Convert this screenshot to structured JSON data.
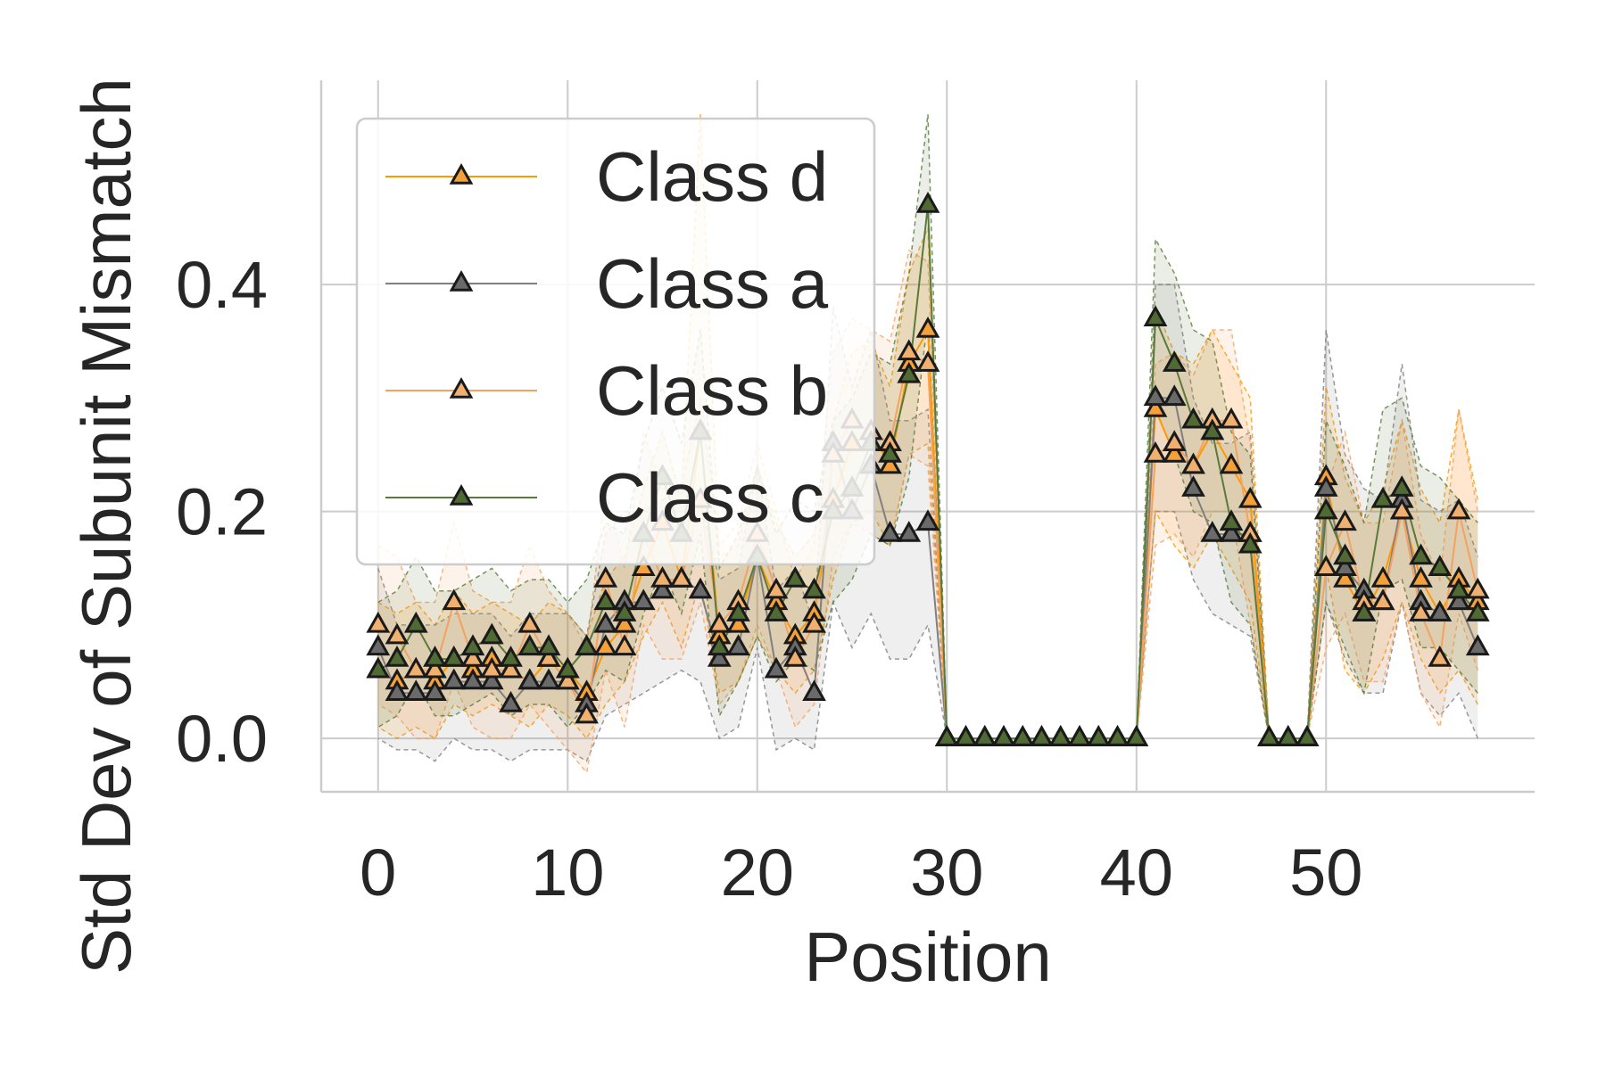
{
  "chart_data": {
    "type": "line",
    "title": "",
    "xlabel": "Position",
    "ylabel": "Std Dev of Subunit Mismatch",
    "xlim": [
      -3,
      61
    ],
    "ylim": [
      -0.047,
      0.58
    ],
    "xticks": [
      0,
      10,
      20,
      30,
      40,
      50
    ],
    "yticks": [
      0.0,
      0.2,
      0.4
    ],
    "xtick_labels": [
      "0",
      "10",
      "20",
      "30",
      "40",
      "50"
    ],
    "ytick_labels": [
      "0.0",
      "0.2",
      "0.4"
    ],
    "grid": true,
    "legend_position": "top-left",
    "marker": "triangle",
    "series": [
      {
        "name": "Class d",
        "color": "#ff9900",
        "marker_color": "#f6a03a",
        "x": [
          0,
          1,
          2,
          3,
          4,
          5,
          6,
          7,
          8,
          9,
          10,
          11,
          12,
          13,
          14,
          15,
          16,
          17,
          18,
          19,
          20,
          21,
          22,
          23,
          24,
          25,
          26,
          27,
          28,
          29,
          30,
          31,
          32,
          33,
          34,
          35,
          36,
          37,
          38,
          39,
          40,
          41,
          42,
          43,
          44,
          45,
          46,
          47,
          48,
          49,
          50,
          51,
          52,
          53,
          54,
          55,
          56,
          57,
          58
        ],
        "y": [
          0.06,
          0.05,
          0.06,
          0.05,
          0.07,
          0.06,
          0.07,
          0.06,
          0.05,
          0.07,
          0.06,
          0.04,
          0.08,
          0.1,
          0.15,
          0.19,
          0.14,
          0.27,
          0.09,
          0.1,
          0.16,
          0.12,
          0.09,
          0.11,
          0.21,
          0.26,
          0.27,
          0.24,
          0.33,
          0.36,
          0,
          0,
          0,
          0,
          0,
          0,
          0,
          0,
          0,
          0,
          0,
          0.29,
          0.25,
          0.24,
          0.27,
          0.24,
          0.21,
          0,
          0,
          0,
          0.23,
          0.14,
          0.11,
          0.14,
          0.2,
          0.14,
          0.11,
          0.14,
          0.12
        ],
        "band_lower": [
          0.01,
          0.0,
          0.01,
          0.0,
          0.03,
          0.02,
          0.03,
          0.02,
          0.01,
          0.03,
          0.02,
          0.0,
          0.03,
          0.05,
          0.09,
          0.12,
          0.08,
          0.14,
          0.04,
          0.05,
          0.09,
          0.06,
          0.04,
          0.06,
          0.14,
          0.19,
          0.2,
          0.17,
          0.25,
          0.26,
          0,
          0,
          0,
          0,
          0,
          0,
          0,
          0,
          0,
          0,
          0,
          0.2,
          0.17,
          0.15,
          0.18,
          0.15,
          0.12,
          0,
          0,
          0,
          0.15,
          0.06,
          0.04,
          0.07,
          0.12,
          0.07,
          0.04,
          0.06,
          0.03
        ],
        "band_upper": [
          0.12,
          0.11,
          0.12,
          0.1,
          0.13,
          0.11,
          0.12,
          0.11,
          0.1,
          0.12,
          0.11,
          0.09,
          0.14,
          0.16,
          0.22,
          0.27,
          0.21,
          0.55,
          0.16,
          0.17,
          0.24,
          0.19,
          0.16,
          0.18,
          0.28,
          0.34,
          0.35,
          0.31,
          0.41,
          0.45,
          0,
          0,
          0,
          0,
          0,
          0,
          0,
          0,
          0,
          0,
          0,
          0.38,
          0.34,
          0.33,
          0.36,
          0.33,
          0.3,
          0,
          0,
          0,
          0.31,
          0.23,
          0.19,
          0.22,
          0.28,
          0.22,
          0.19,
          0.29,
          0.21
        ]
      },
      {
        "name": "Class a",
        "color": "#808080",
        "marker_color": "#6a6a6a",
        "x": [
          0,
          1,
          2,
          3,
          4,
          5,
          6,
          7,
          8,
          9,
          10,
          11,
          12,
          13,
          14,
          15,
          16,
          17,
          18,
          19,
          20,
          21,
          22,
          23,
          24,
          25,
          26,
          27,
          28,
          29,
          30,
          31,
          32,
          33,
          34,
          35,
          36,
          37,
          38,
          39,
          40,
          41,
          42,
          43,
          44,
          45,
          46,
          47,
          48,
          49,
          50,
          51,
          52,
          53,
          54,
          55,
          56,
          57,
          58
        ],
        "y": [
          0.08,
          0.04,
          0.04,
          0.04,
          0.05,
          0.05,
          0.05,
          0.03,
          0.05,
          0.05,
          0.05,
          0.03,
          0.1,
          0.12,
          0.12,
          0.13,
          0.14,
          0.13,
          0.07,
          0.08,
          0.16,
          0.06,
          0.08,
          0.04,
          0.26,
          0.2,
          0.24,
          0.18,
          0.18,
          0.19,
          0,
          0,
          0,
          0,
          0,
          0,
          0,
          0,
          0,
          0,
          0,
          0.3,
          0.3,
          0.22,
          0.18,
          0.18,
          0.18,
          0,
          0,
          0,
          0.22,
          0.15,
          0.13,
          0.12,
          0.21,
          0.12,
          0.11,
          0.12,
          0.08
        ],
        "band_lower": [
          0.0,
          -0.01,
          -0.01,
          -0.02,
          0.0,
          -0.01,
          -0.01,
          -0.02,
          -0.01,
          -0.01,
          -0.01,
          -0.02,
          0.02,
          0.03,
          0.04,
          0.05,
          0.06,
          0.05,
          0.0,
          0.01,
          0.08,
          -0.01,
          0.0,
          -0.01,
          0.12,
          0.08,
          0.11,
          0.07,
          0.07,
          0.1,
          0,
          0,
          0,
          0,
          0,
          0,
          0,
          0,
          0,
          0,
          0,
          0.2,
          0.2,
          0.14,
          0.11,
          0.1,
          0.09,
          0,
          0,
          0,
          0.12,
          0.07,
          0.04,
          0.04,
          0.12,
          0.04,
          0.02,
          0.04,
          0.0
        ],
        "band_upper": [
          0.15,
          0.1,
          0.1,
          0.1,
          0.11,
          0.11,
          0.11,
          0.09,
          0.11,
          0.11,
          0.11,
          0.09,
          0.18,
          0.2,
          0.2,
          0.21,
          0.22,
          0.21,
          0.14,
          0.15,
          0.24,
          0.13,
          0.15,
          0.1,
          0.38,
          0.31,
          0.36,
          0.28,
          0.28,
          0.29,
          0,
          0,
          0,
          0,
          0,
          0,
          0,
          0,
          0,
          0,
          0,
          0.4,
          0.4,
          0.3,
          0.26,
          0.26,
          0.27,
          0,
          0,
          0,
          0.36,
          0.25,
          0.22,
          0.21,
          0.33,
          0.21,
          0.2,
          0.21,
          0.16
        ]
      },
      {
        "name": "Class b",
        "color": "#f4a261",
        "marker_color": "#f0b070",
        "x": [
          0,
          1,
          2,
          3,
          4,
          5,
          6,
          7,
          8,
          9,
          10,
          11,
          12,
          13,
          14,
          15,
          16,
          17,
          18,
          19,
          20,
          21,
          22,
          23,
          24,
          25,
          26,
          27,
          28,
          29,
          30,
          31,
          32,
          33,
          34,
          35,
          36,
          37,
          38,
          39,
          40,
          41,
          42,
          43,
          44,
          45,
          46,
          47,
          48,
          49,
          50,
          51,
          52,
          53,
          54,
          55,
          56,
          57,
          58
        ],
        "y": [
          0.1,
          0.09,
          0.06,
          0.06,
          0.12,
          0.07,
          0.06,
          0.06,
          0.1,
          0.07,
          0.05,
          0.02,
          0.14,
          0.08,
          0.18,
          0.14,
          0.14,
          0.21,
          0.1,
          0.12,
          0.18,
          0.13,
          0.07,
          0.1,
          0.25,
          0.28,
          0.27,
          0.26,
          0.34,
          0.33,
          0,
          0,
          0,
          0,
          0,
          0,
          0,
          0,
          0,
          0,
          0,
          0.25,
          0.26,
          0.24,
          0.28,
          0.28,
          0.18,
          0,
          0,
          0,
          0.15,
          0.19,
          0.12,
          0.12,
          0.2,
          0.11,
          0.07,
          0.2,
          0.13
        ],
        "band_lower": [
          0.03,
          0.02,
          0.0,
          0.0,
          0.05,
          0.01,
          0.0,
          0.0,
          0.03,
          0.01,
          -0.01,
          -0.03,
          0.06,
          0.01,
          0.1,
          0.07,
          0.07,
          0.12,
          0.03,
          0.05,
          0.1,
          0.06,
          0.01,
          0.03,
          0.16,
          0.19,
          0.18,
          0.17,
          0.25,
          0.24,
          0,
          0,
          0,
          0,
          0,
          0,
          0,
          0,
          0,
          0,
          0,
          0.17,
          0.18,
          0.16,
          0.2,
          0.2,
          0.1,
          0,
          0,
          0,
          0.08,
          0.11,
          0.05,
          0.05,
          0.12,
          0.04,
          0.01,
          0.11,
          0.06
        ],
        "band_upper": [
          0.17,
          0.16,
          0.12,
          0.12,
          0.19,
          0.13,
          0.12,
          0.12,
          0.17,
          0.13,
          0.11,
          0.08,
          0.22,
          0.15,
          0.27,
          0.22,
          0.22,
          0.3,
          0.17,
          0.19,
          0.26,
          0.2,
          0.14,
          0.17,
          0.34,
          0.37,
          0.36,
          0.35,
          0.43,
          0.42,
          0,
          0,
          0,
          0,
          0,
          0,
          0,
          0,
          0,
          0,
          0,
          0.33,
          0.34,
          0.32,
          0.36,
          0.36,
          0.26,
          0,
          0,
          0,
          0.22,
          0.27,
          0.19,
          0.19,
          0.28,
          0.18,
          0.14,
          0.29,
          0.2
        ]
      },
      {
        "name": "Class c",
        "color": "#5a7a3a",
        "marker_color": "#4f6b33",
        "x": [
          0,
          1,
          2,
          3,
          4,
          5,
          6,
          7,
          8,
          9,
          10,
          11,
          12,
          13,
          14,
          15,
          16,
          17,
          18,
          19,
          20,
          21,
          22,
          23,
          24,
          25,
          26,
          27,
          28,
          29,
          30,
          31,
          32,
          33,
          34,
          35,
          36,
          37,
          38,
          39,
          40,
          41,
          42,
          43,
          44,
          45,
          46,
          47,
          48,
          49,
          50,
          51,
          52,
          53,
          54,
          55,
          56,
          57,
          58
        ],
        "y": [
          0.06,
          0.07,
          0.1,
          0.07,
          0.07,
          0.08,
          0.09,
          0.07,
          0.08,
          0.08,
          0.06,
          0.08,
          0.12,
          0.11,
          0.18,
          0.23,
          0.18,
          0.27,
          0.08,
          0.11,
          0.16,
          0.11,
          0.14,
          0.13,
          0.2,
          0.22,
          0.26,
          0.25,
          0.32,
          0.47,
          0,
          0,
          0,
          0,
          0,
          0,
          0,
          0,
          0,
          0,
          0,
          0.37,
          0.33,
          0.28,
          0.27,
          0.19,
          0.17,
          0,
          0,
          0,
          0.2,
          0.16,
          0.11,
          0.21,
          0.22,
          0.16,
          0.15,
          0.13,
          0.11
        ],
        "band_lower": [
          0.01,
          0.02,
          0.05,
          0.02,
          0.02,
          0.03,
          0.04,
          0.02,
          0.03,
          0.03,
          0.01,
          0.03,
          0.06,
          0.05,
          0.11,
          0.15,
          0.11,
          0.18,
          0.02,
          0.05,
          0.09,
          0.05,
          0.07,
          0.06,
          0.12,
          0.14,
          0.18,
          0.17,
          0.23,
          0.37,
          0,
          0,
          0,
          0,
          0,
          0,
          0,
          0,
          0,
          0,
          0,
          0.29,
          0.25,
          0.2,
          0.19,
          0.12,
          0.1,
          0,
          0,
          0,
          0.12,
          0.08,
          0.04,
          0.13,
          0.14,
          0.08,
          0.08,
          0.06,
          0.04
        ],
        "band_upper": [
          0.12,
          0.13,
          0.16,
          0.13,
          0.13,
          0.14,
          0.15,
          0.13,
          0.14,
          0.14,
          0.12,
          0.14,
          0.19,
          0.18,
          0.26,
          0.31,
          0.26,
          0.36,
          0.15,
          0.18,
          0.24,
          0.18,
          0.21,
          0.2,
          0.28,
          0.3,
          0.34,
          0.33,
          0.41,
          0.55,
          0,
          0,
          0,
          0,
          0,
          0,
          0,
          0,
          0,
          0,
          0,
          0.44,
          0.41,
          0.36,
          0.35,
          0.27,
          0.25,
          0,
          0,
          0,
          0.28,
          0.24,
          0.19,
          0.29,
          0.3,
          0.24,
          0.23,
          0.21,
          0.19
        ]
      }
    ]
  }
}
